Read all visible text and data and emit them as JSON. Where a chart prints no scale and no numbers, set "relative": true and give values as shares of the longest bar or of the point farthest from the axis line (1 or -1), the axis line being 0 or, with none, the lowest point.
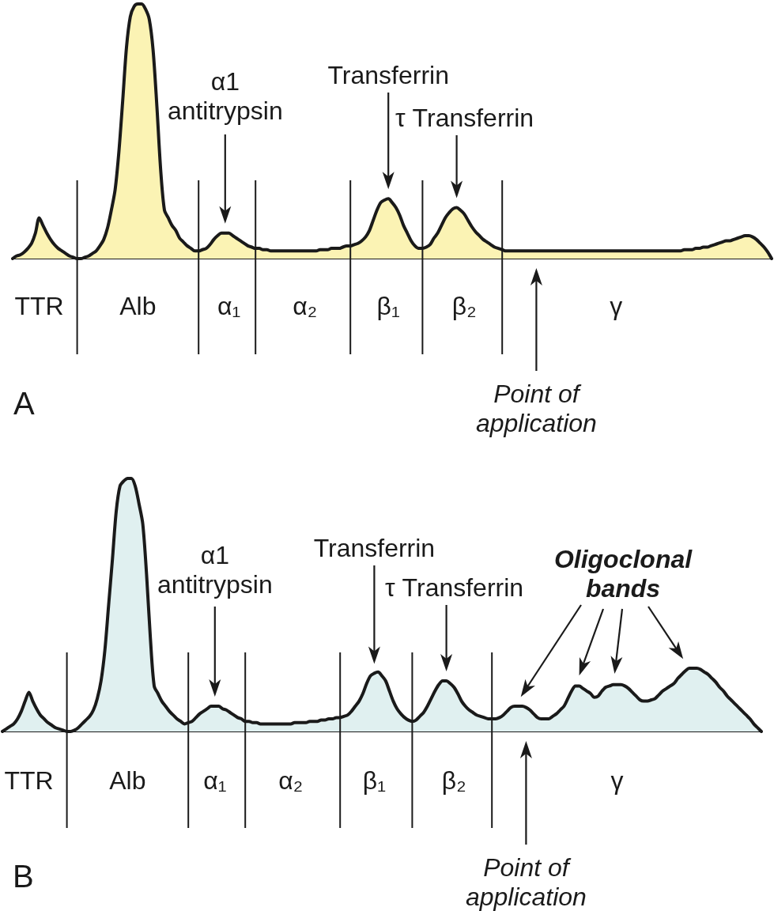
{
  "chart_data": [
    {
      "type": "area",
      "title": "A",
      "relative": true,
      "tick_labels": "x",
      "color": "#fbf3b4",
      "categories": [
        null,
        null,
        null,
        null,
        null,
        null,
        null,
        "TTR",
        null,
        null,
        null,
        null,
        null,
        null,
        null,
        null,
        null,
        null,
        null,
        null,
        null,
        null,
        null,
        null,
        null,
        null,
        null,
        null,
        null,
        null,
        null,
        null,
        null,
        "Alb",
        null,
        null,
        null,
        null,
        null,
        null,
        null,
        null,
        null,
        null,
        null,
        null,
        null,
        null,
        null,
        null,
        null,
        null,
        null,
        null,
        null,
        null,
        null,
        "α₁",
        null,
        null,
        null,
        null,
        null,
        null,
        null,
        null,
        null,
        null,
        null,
        null,
        null,
        null,
        null,
        null,
        null,
        null,
        null,
        "α₂",
        null,
        null,
        null,
        null,
        null,
        null,
        null,
        null,
        null,
        null,
        null,
        null,
        null,
        null,
        null,
        null,
        null,
        null,
        null,
        null,
        null,
        "β₁",
        null,
        null,
        null,
        null,
        null,
        null,
        null,
        null,
        null,
        null,
        null,
        null,
        null,
        null,
        null,
        null,
        null,
        null,
        null,
        "β₂",
        null,
        null,
        null,
        null,
        null,
        null,
        null,
        null,
        null,
        null,
        null,
        null,
        null,
        null,
        null,
        null,
        null,
        null,
        null,
        null,
        null,
        null,
        null,
        null,
        null,
        null,
        null,
        null,
        null,
        null,
        null,
        null,
        null,
        null,
        null,
        null,
        null,
        null,
        null,
        "γ",
        null,
        null,
        null,
        null,
        null,
        null,
        null,
        null,
        null,
        null,
        null,
        null,
        null,
        null,
        null,
        null,
        null,
        null,
        null,
        null,
        null,
        null,
        null,
        null,
        null,
        null,
        null,
        null,
        null,
        null,
        null,
        null,
        null,
        null,
        null,
        null,
        null,
        null,
        null,
        null,
        null
      ],
      "values": [
        0,
        0.01,
        0.015,
        0.025,
        0.04,
        0.06,
        0.1,
        0.16,
        0.13,
        0.1,
        0.075,
        0.055,
        0.04,
        0.03,
        0.02,
        0.01,
        0.005,
        0,
        0,
        0.005,
        0.01,
        0.02,
        0.03,
        0.05,
        0.075,
        0.12,
        0.19,
        0.27,
        0.42,
        0.62,
        0.83,
        0.95,
        0.99,
        1,
        1,
        0.98,
        0.94,
        0.82,
        0.6,
        0.35,
        0.19,
        0.16,
        0.13,
        0.11,
        0.08,
        0.065,
        0.05,
        0.04,
        0.03,
        0.03,
        0.035,
        0.04,
        0.055,
        0.075,
        0.09,
        0.1,
        0.1,
        0.1,
        0.09,
        0.08,
        0.07,
        0.06,
        0.05,
        0.045,
        0.04,
        0.04,
        0.035,
        0.035,
        0.03,
        0.03,
        0.03,
        0.03,
        0.03,
        0.03,
        0.03,
        0.03,
        0.03,
        0.03,
        0.03,
        0.03,
        0.03,
        0.035,
        0.035,
        0.035,
        0.04,
        0.04,
        0.04,
        0.045,
        0.05,
        0.05,
        0.055,
        0.06,
        0.07,
        0.085,
        0.11,
        0.15,
        0.19,
        0.22,
        0.23,
        0.235,
        0.22,
        0.2,
        0.17,
        0.13,
        0.1,
        0.07,
        0.05,
        0.04,
        0.04,
        0.045,
        0.055,
        0.08,
        0.1,
        0.13,
        0.16,
        0.18,
        0.195,
        0.2,
        0.19,
        0.175,
        0.15,
        0.125,
        0.105,
        0.09,
        0.075,
        0.065,
        0.055,
        0.045,
        0.04,
        0.035,
        0.03,
        0.03,
        0.03,
        0.03,
        0.03,
        0.03,
        0.03,
        0.03,
        0.03,
        0.03,
        0.03,
        0.03,
        0.03,
        0.03,
        0.03,
        0.03,
        0.03,
        0.03,
        0.03,
        0.03,
        0.03,
        0.03,
        0.03,
        0.03,
        0.03,
        0.03,
        0.03,
        0.03,
        0.03,
        0.03,
        0.03,
        0.03,
        0.03,
        0.03,
        0.03,
        0.03,
        0.03,
        0.03,
        0.03,
        0.03,
        0.03,
        0.03,
        0.03,
        0.03,
        0.03,
        0.03,
        0.03,
        0.035,
        0.035,
        0.035,
        0.04,
        0.04,
        0.045,
        0.045,
        0.05,
        0.055,
        0.06,
        0.065,
        0.07,
        0.07,
        0.075,
        0.08,
        0.085,
        0.09,
        0.09,
        0.085,
        0.075,
        0.06,
        0.045,
        0.025,
        0
      ],
      "annotations": [
        "α1\nantitrypsin",
        "Transferrin",
        "τ Transferrin",
        "Point of\napplication"
      ]
    },
    {
      "type": "area",
      "title": "B",
      "relative": true,
      "tick_labels": "x",
      "color": "#e0f0f0",
      "categories": [
        null,
        null,
        null,
        null,
        null,
        null,
        null,
        "TTR",
        null,
        null,
        null,
        null,
        null,
        null,
        null,
        null,
        null,
        null,
        null,
        null,
        null,
        null,
        null,
        null,
        null,
        null,
        null,
        null,
        null,
        null,
        null,
        null,
        null,
        "Alb",
        null,
        null,
        null,
        null,
        null,
        null,
        null,
        null,
        null,
        null,
        null,
        null,
        null,
        null,
        null,
        null,
        null,
        null,
        null,
        null,
        null,
        null,
        "α₁",
        null,
        null,
        null,
        null,
        null,
        null,
        null,
        null,
        null,
        null,
        null,
        null,
        null,
        null,
        null,
        null,
        null,
        null,
        null,
        "α₂",
        null,
        null,
        null,
        null,
        null,
        null,
        null,
        null,
        null,
        null,
        null,
        null,
        null,
        null,
        null,
        null,
        null,
        null,
        null,
        null,
        null,
        "β₁",
        null,
        null,
        null,
        null,
        null,
        null,
        null,
        null,
        null,
        null,
        null,
        null,
        null,
        null,
        null,
        null,
        null,
        null,
        null,
        null,
        "β₂",
        null,
        null,
        null,
        null,
        null,
        null,
        null,
        null,
        null,
        null,
        null,
        null,
        null,
        null,
        null,
        null,
        null,
        null,
        null,
        null,
        null,
        null,
        null,
        null,
        null,
        null,
        null,
        null,
        null,
        null,
        null,
        null,
        null,
        null,
        null,
        null,
        null,
        null,
        null,
        null,
        null,
        null,
        "γ",
        null,
        null,
        null,
        null,
        null,
        null,
        null,
        null,
        null,
        null,
        null,
        null,
        null,
        null,
        null,
        null,
        null,
        null,
        null,
        null,
        null,
        null,
        null,
        null,
        null,
        null,
        null,
        null,
        null,
        null,
        null,
        null,
        null,
        null,
        null,
        null,
        null,
        null
      ],
      "values": [
        0,
        0.01,
        0.02,
        0.03,
        0.05,
        0.08,
        0.12,
        0.155,
        0.12,
        0.09,
        0.065,
        0.05,
        0.035,
        0.025,
        0.015,
        0.01,
        0.005,
        0,
        0,
        0.005,
        0.015,
        0.03,
        0.045,
        0.06,
        0.085,
        0.13,
        0.2,
        0.32,
        0.5,
        0.68,
        0.87,
        0.97,
        0.99,
        1,
        1,
        0.97,
        0.9,
        0.82,
        0.62,
        0.37,
        0.18,
        0.15,
        0.12,
        0.1,
        0.08,
        0.065,
        0.05,
        0.04,
        0.03,
        0.035,
        0.04,
        0.055,
        0.07,
        0.08,
        0.09,
        0.1,
        0.1,
        0.1,
        0.09,
        0.085,
        0.075,
        0.065,
        0.055,
        0.05,
        0.04,
        0.04,
        0.035,
        0.035,
        0.03,
        0.03,
        0.03,
        0.03,
        0.03,
        0.03,
        0.03,
        0.03,
        0.03,
        0.035,
        0.035,
        0.035,
        0.035,
        0.04,
        0.04,
        0.04,
        0.045,
        0.045,
        0.05,
        0.05,
        0.055,
        0.055,
        0.06,
        0.065,
        0.08,
        0.1,
        0.12,
        0.15,
        0.19,
        0.22,
        0.23,
        0.235,
        0.22,
        0.2,
        0.16,
        0.12,
        0.09,
        0.07,
        0.055,
        0.045,
        0.04,
        0.045,
        0.06,
        0.075,
        0.1,
        0.13,
        0.16,
        0.185,
        0.2,
        0.2,
        0.19,
        0.175,
        0.15,
        0.12,
        0.1,
        0.085,
        0.075,
        0.065,
        0.06,
        0.055,
        0.05,
        0.05,
        0.05,
        0.055,
        0.065,
        0.08,
        0.095,
        0.1,
        0.1,
        0.1,
        0.095,
        0.085,
        0.07,
        0.055,
        0.05,
        0.05,
        0.05,
        0.06,
        0.07,
        0.085,
        0.1,
        0.13,
        0.16,
        0.18,
        0.18,
        0.17,
        0.16,
        0.15,
        0.135,
        0.14,
        0.16,
        0.175,
        0.18,
        0.185,
        0.185,
        0.185,
        0.18,
        0.17,
        0.155,
        0.14,
        0.125,
        0.12,
        0.12,
        0.125,
        0.13,
        0.145,
        0.16,
        0.17,
        0.18,
        0.19,
        0.21,
        0.225,
        0.24,
        0.25,
        0.25,
        0.25,
        0.245,
        0.235,
        0.225,
        0.21,
        0.195,
        0.175,
        0.16,
        0.14,
        0.125,
        0.11,
        0.095,
        0.08,
        0.065,
        0.05,
        0.03,
        0.015,
        0
      ],
      "annotations": [
        "α1\nantitrypsin",
        "Transferrin",
        "τ Transferrin",
        "Point of\napplication",
        "Oligoclonal\nbands"
      ]
    }
  ]
}
